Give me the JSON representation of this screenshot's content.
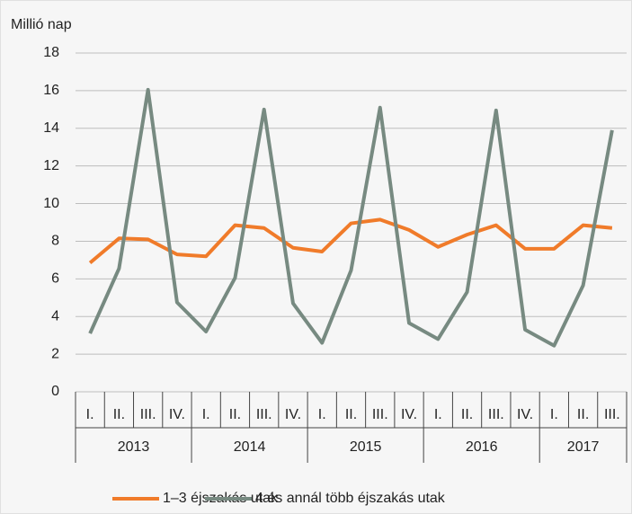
{
  "chart_data": {
    "type": "line",
    "y_axis_label": "Millió nap",
    "categories": [
      "I.",
      "II.",
      "III.",
      "IV.",
      "I.",
      "II.",
      "III.",
      "IV.",
      "I.",
      "II.",
      "III.",
      "IV.",
      "I.",
      "II.",
      "III.",
      "IV.",
      "I.",
      "II.",
      "III."
    ],
    "years": [
      "2013",
      "2014",
      "2015",
      "2016",
      "2017"
    ],
    "series": [
      {
        "name": "1–3 éjszakás utak",
        "color": "#f07b2a",
        "values": [
          6.85,
          8.15,
          8.1,
          7.3,
          7.2,
          8.85,
          8.7,
          7.65,
          7.45,
          8.95,
          9.15,
          8.6,
          7.7,
          8.35,
          8.85,
          7.6,
          7.6,
          8.85,
          8.7
        ]
      },
      {
        "name": "4 és annál több éjszakás utak",
        "color": "#778a81",
        "values": [
          3.1,
          6.55,
          16.05,
          4.75,
          3.2,
          6.05,
          15.0,
          4.7,
          2.6,
          6.45,
          15.1,
          3.65,
          2.8,
          5.3,
          14.95,
          3.3,
          2.45,
          5.65,
          13.9
        ]
      }
    ],
    "ylim": [
      0,
      18
    ],
    "yticks": [
      0,
      2,
      4,
      6,
      8,
      10,
      12,
      14,
      16,
      18
    ],
    "grid": true,
    "legend": "bottom"
  }
}
